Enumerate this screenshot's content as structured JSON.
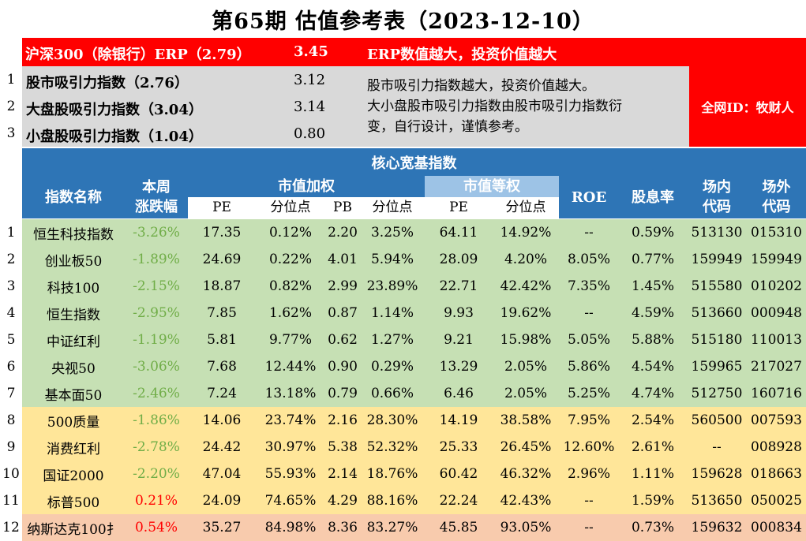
{
  "title": "第65期 估值参考表（2023-12-10）",
  "erp": {
    "label": "沪深300（除银行）ERP（2.79）",
    "value": "3.45",
    "note": "ERP数值越大，投资价值越大"
  },
  "indicators": [
    {
      "num": "1",
      "label": "股市吸引力指数（2.76）",
      "value": "3.12"
    },
    {
      "num": "2",
      "label": "大盘股吸引力指数（3.04）",
      "value": "3.14"
    },
    {
      "num": "3",
      "label": "小盘股吸引力指数（1.04）",
      "value": "0.80"
    }
  ],
  "note_line1": "股市吸引力指数越大，投资价值越大。",
  "note_line2": "大小盘股市吸引力指数由股市吸引力指数衍",
  "note_line3": "变，自行设计，谨慎参考。",
  "side_label": "全网ID：牧财人",
  "section_title": "核心宽基指数",
  "headers": {
    "name": "指数名称",
    "change_l1": "本周",
    "change_l2": "涨跌幅",
    "mcw": "市值加权",
    "ew": "市值等权",
    "roe": "ROE",
    "div": "股息率",
    "onex_l1": "场内",
    "onex_l2": "代码",
    "offex_l1": "场外",
    "offex_l2": "代码",
    "pe": "PE",
    "pct": "分位点",
    "pb": "PB",
    "pct2": "分位点",
    "pe2": "PE",
    "pct3": "分位点"
  },
  "colors": {
    "green_row": "#c6e0b4",
    "yellow_row": "#ffe699",
    "peach_row": "#f8cbad",
    "header_blue": "#2e75b6",
    "erp_red": "#ff0000",
    "change_negative": "#70ad47",
    "change_positive": "#ff0000"
  },
  "rows": [
    {
      "num": "1",
      "name": "恒生科技指数",
      "change": "-3.26%",
      "pe": "17.35",
      "pe_pct": "0.12%",
      "pb": "2.20",
      "pb_pct": "3.25%",
      "ew_pe": "64.11",
      "ew_pct": "14.92%",
      "roe": "--",
      "div": "0.59%",
      "onex": "513130",
      "offex": "015310",
      "tone": "green",
      "sign": "neg"
    },
    {
      "num": "2",
      "name": "创业板50",
      "change": "-1.89%",
      "pe": "24.69",
      "pe_pct": "0.22%",
      "pb": "4.01",
      "pb_pct": "5.94%",
      "ew_pe": "28.09",
      "ew_pct": "4.20%",
      "roe": "8.05%",
      "div": "0.77%",
      "onex": "159949",
      "offex": "159949",
      "tone": "green",
      "sign": "neg"
    },
    {
      "num": "3",
      "name": "科技100",
      "change": "-2.15%",
      "pe": "18.87",
      "pe_pct": "0.82%",
      "pb": "2.99",
      "pb_pct": "23.89%",
      "ew_pe": "22.71",
      "ew_pct": "42.42%",
      "roe": "7.35%",
      "div": "1.45%",
      "onex": "515580",
      "offex": "010202",
      "tone": "green",
      "sign": "neg"
    },
    {
      "num": "4",
      "name": "恒生指数",
      "change": "-2.95%",
      "pe": "7.85",
      "pe_pct": "1.62%",
      "pb": "0.87",
      "pb_pct": "1.14%",
      "ew_pe": "9.93",
      "ew_pct": "19.62%",
      "roe": "--",
      "div": "4.59%",
      "onex": "513660",
      "offex": "000948",
      "tone": "green",
      "sign": "neg"
    },
    {
      "num": "5",
      "name": "中证红利",
      "change": "-1.19%",
      "pe": "5.81",
      "pe_pct": "9.77%",
      "pb": "0.62",
      "pb_pct": "1.27%",
      "ew_pe": "9.21",
      "ew_pct": "15.98%",
      "roe": "5.05%",
      "div": "5.88%",
      "onex": "515180",
      "offex": "110013",
      "tone": "green",
      "sign": "neg"
    },
    {
      "num": "6",
      "name": "央视50",
      "change": "-3.06%",
      "pe": "7.68",
      "pe_pct": "12.44%",
      "pb": "0.90",
      "pb_pct": "0.29%",
      "ew_pe": "13.29",
      "ew_pct": "2.05%",
      "roe": "5.86%",
      "div": "4.54%",
      "onex": "159965",
      "offex": "217027",
      "tone": "green",
      "sign": "neg"
    },
    {
      "num": "7",
      "name": "基本面50",
      "change": "-2.46%",
      "pe": "7.24",
      "pe_pct": "13.18%",
      "pb": "0.79",
      "pb_pct": "0.66%",
      "ew_pe": "6.46",
      "ew_pct": "2.05%",
      "roe": "5.25%",
      "div": "4.74%",
      "onex": "512750",
      "offex": "160716",
      "tone": "green",
      "sign": "neg"
    },
    {
      "num": "8",
      "name": "500质量",
      "change": "-1.86%",
      "pe": "14.06",
      "pe_pct": "23.74%",
      "pb": "2.16",
      "pb_pct": "28.30%",
      "ew_pe": "14.19",
      "ew_pct": "38.58%",
      "roe": "7.95%",
      "div": "2.54%",
      "onex": "560500",
      "offex": "007593",
      "tone": "yellow",
      "sign": "neg"
    },
    {
      "num": "9",
      "name": "消费红利",
      "change": "-2.78%",
      "pe": "24.42",
      "pe_pct": "30.97%",
      "pb": "5.38",
      "pb_pct": "52.32%",
      "ew_pe": "25.33",
      "ew_pct": "26.45%",
      "roe": "12.60%",
      "div": "2.61%",
      "onex": "--",
      "offex": "008928",
      "tone": "yellow",
      "sign": "neg"
    },
    {
      "num": "10",
      "name": "国证2000",
      "change": "-2.20%",
      "pe": "47.04",
      "pe_pct": "55.93%",
      "pb": "2.14",
      "pb_pct": "18.76%",
      "ew_pe": "60.42",
      "ew_pct": "46.32%",
      "roe": "2.96%",
      "div": "1.11%",
      "onex": "159628",
      "offex": "018663",
      "tone": "yellow",
      "sign": "neg"
    },
    {
      "num": "11",
      "name": "标普500",
      "change": "0.21%",
      "pe": "24.09",
      "pe_pct": "74.65%",
      "pb": "4.29",
      "pb_pct": "88.16%",
      "ew_pe": "22.24",
      "ew_pct": "42.43%",
      "roe": "--",
      "div": "1.59%",
      "onex": "513650",
      "offex": "050025",
      "tone": "yellow",
      "sign": "pos"
    },
    {
      "num": "12",
      "name": "纳斯达克100扌",
      "change": "0.54%",
      "pe": "35.27",
      "pe_pct": "84.98%",
      "pb": "8.36",
      "pb_pct": "83.27%",
      "ew_pe": "45.85",
      "ew_pct": "93.05%",
      "roe": "--",
      "div": "0.73%",
      "onex": "159632",
      "offex": "000834",
      "tone": "peach",
      "sign": "pos"
    }
  ]
}
